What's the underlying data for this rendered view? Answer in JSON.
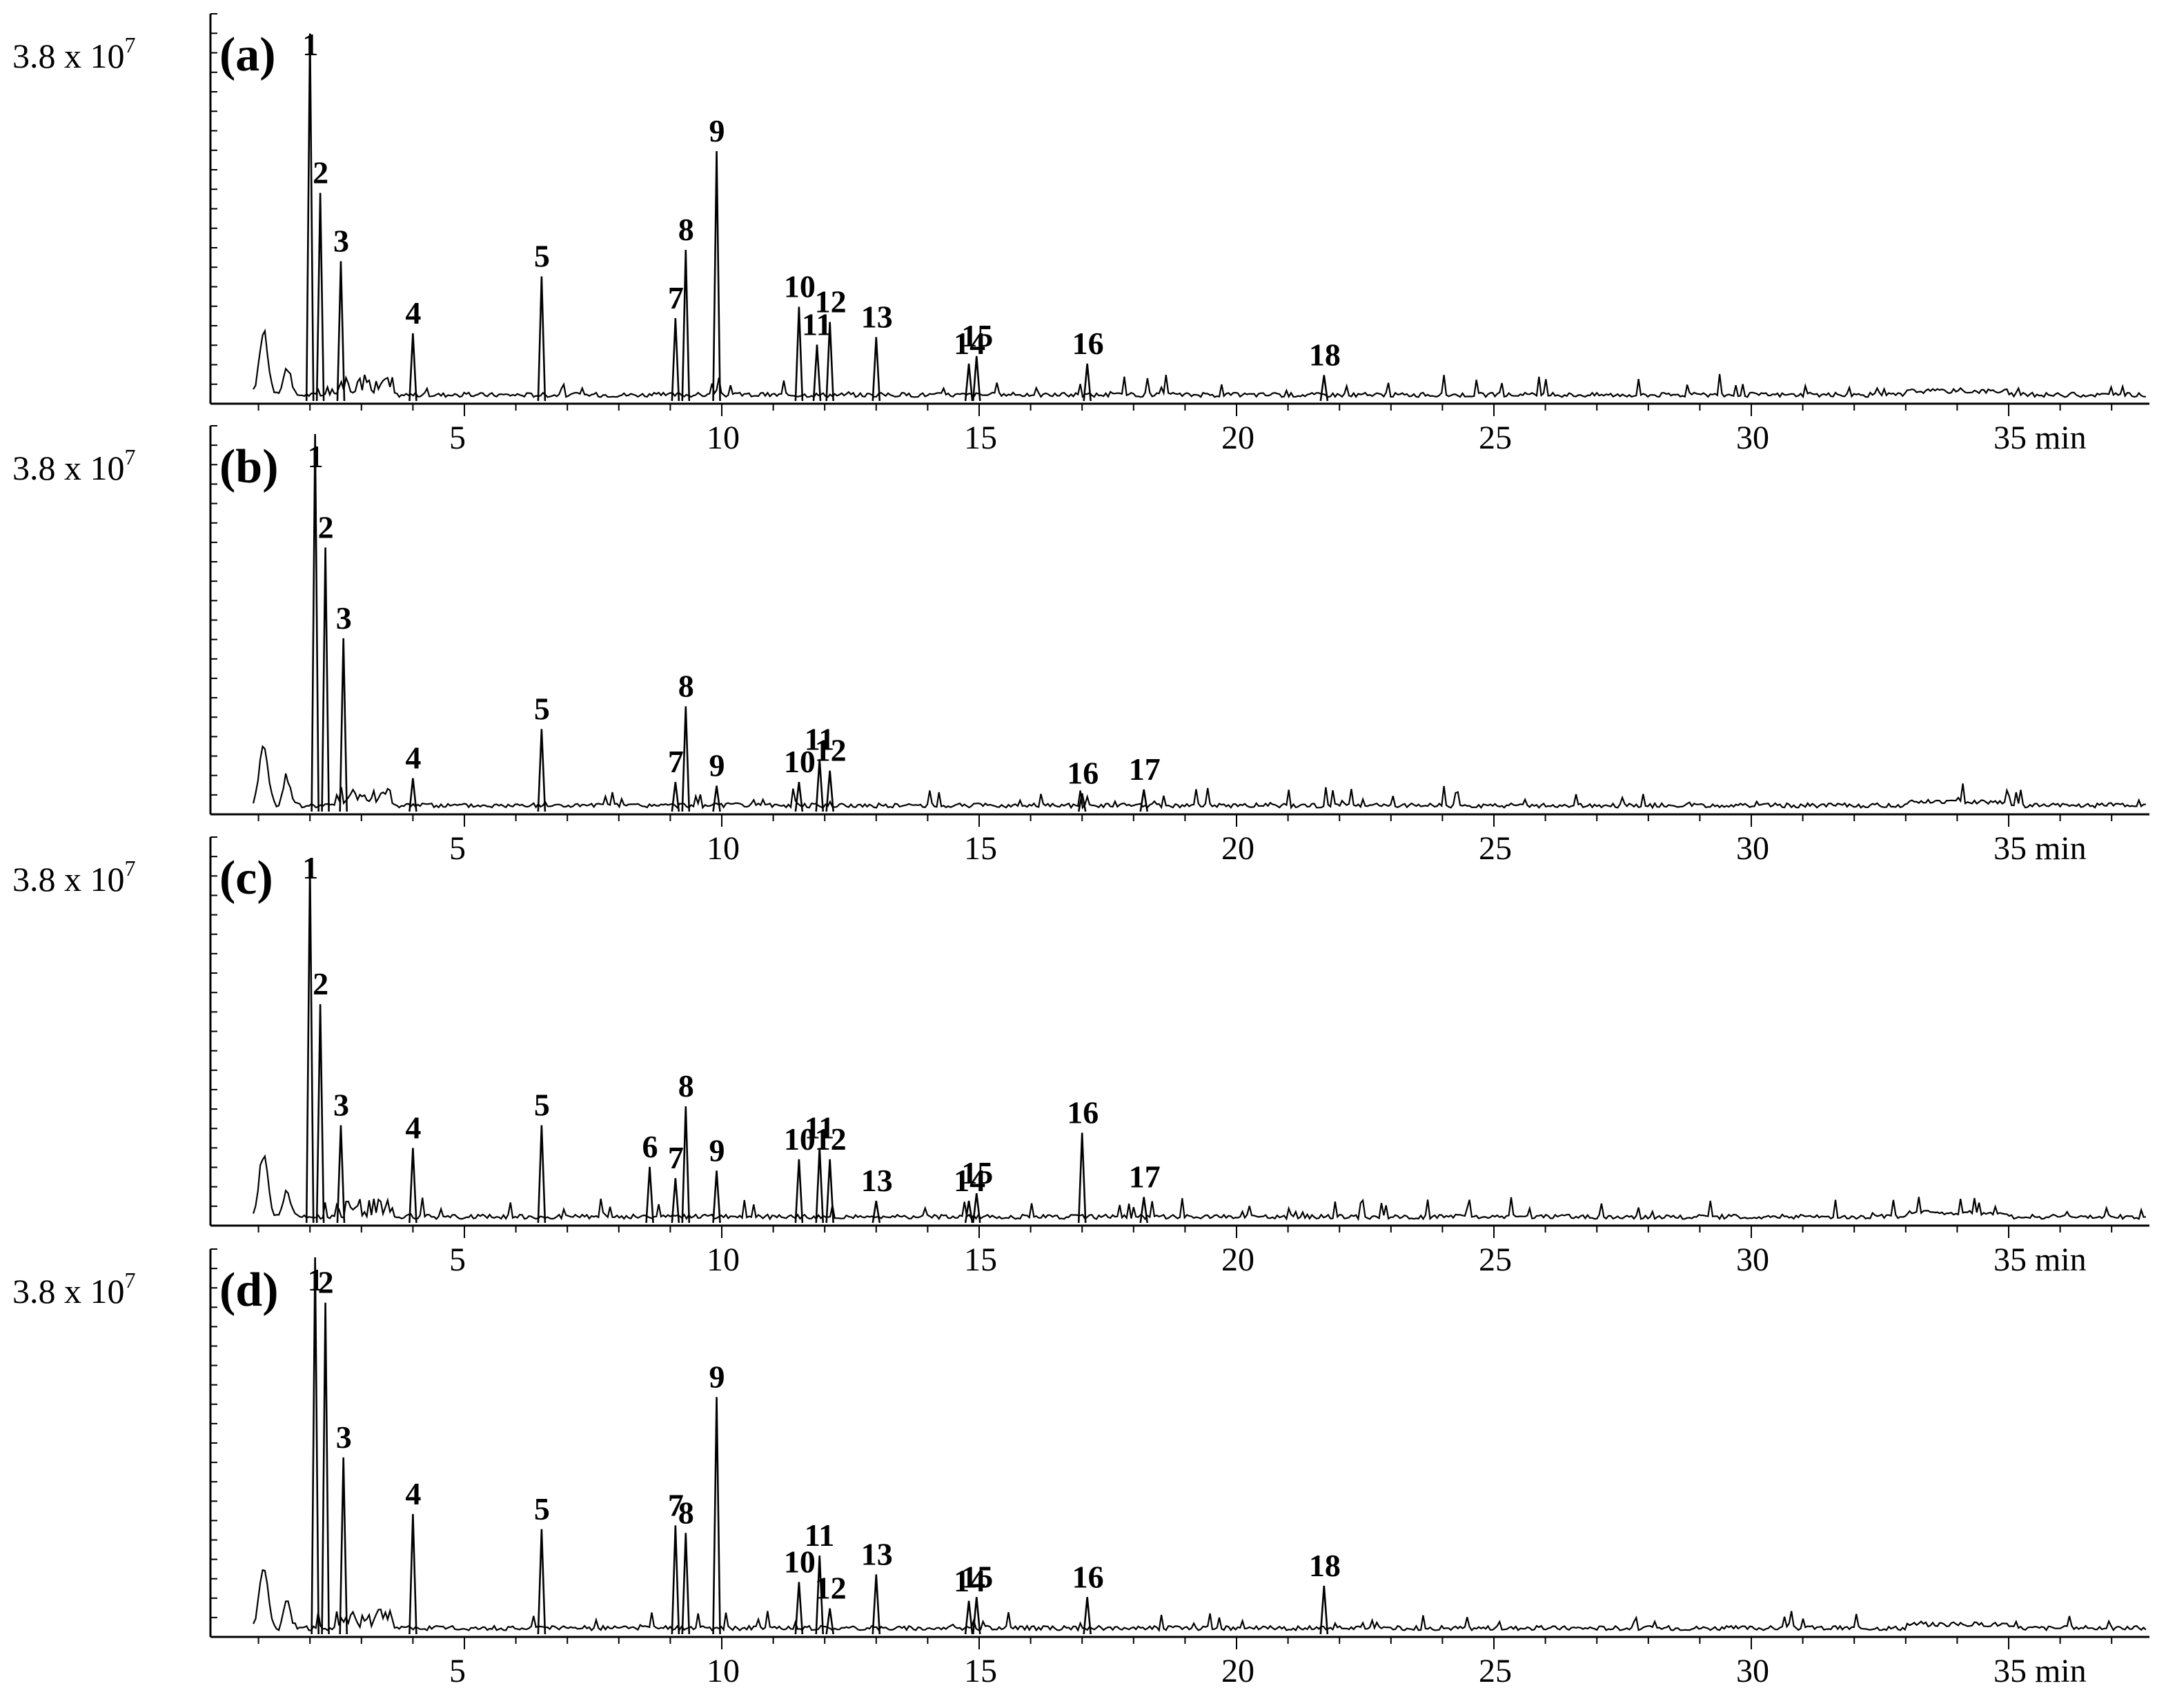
{
  "chart_data": {
    "type": "line",
    "x_unit": "min",
    "xlim": [
      0,
      38
    ],
    "panels": [
      {
        "label": "(a)",
        "y_max_label": "3.8 x 10",
        "y_max_exp": "7",
        "x_ticks": [
          "5",
          "10",
          "15",
          "20",
          "25",
          "30",
          "35 min"
        ],
        "peaks": [
          {
            "id": "1",
            "rt": 2.0,
            "height": 0.97
          },
          {
            "id": "2",
            "rt": 2.2,
            "height": 0.55
          },
          {
            "id": "3",
            "rt": 2.6,
            "height": 0.37
          },
          {
            "id": "4",
            "rt": 4.0,
            "height": 0.18
          },
          {
            "id": "5",
            "rt": 6.5,
            "height": 0.33
          },
          {
            "id": "7",
            "rt": 9.1,
            "height": 0.22
          },
          {
            "id": "8",
            "rt": 9.3,
            "height": 0.4
          },
          {
            "id": "9",
            "rt": 9.9,
            "height": 0.66
          },
          {
            "id": "10",
            "rt": 11.5,
            "height": 0.25
          },
          {
            "id": "11",
            "rt": 11.85,
            "height": 0.15
          },
          {
            "id": "12",
            "rt": 12.1,
            "height": 0.21
          },
          {
            "id": "13",
            "rt": 13.0,
            "height": 0.17
          },
          {
            "id": "14",
            "rt": 14.8,
            "height": 0.1
          },
          {
            "id": "15",
            "rt": 14.95,
            "height": 0.12
          },
          {
            "id": "16",
            "rt": 17.1,
            "height": 0.1
          },
          {
            "id": "18",
            "rt": 21.7,
            "height": 0.07
          }
        ]
      },
      {
        "label": "(b)",
        "y_max_label": "3.8 x 10",
        "y_max_exp": "7",
        "x_ticks": [
          "5",
          "10",
          "15",
          "20",
          "25",
          "30",
          "35 min"
        ],
        "peaks": [
          {
            "id": "1",
            "rt": 2.1,
            "height": 1.0
          },
          {
            "id": "2",
            "rt": 2.3,
            "height": 0.7
          },
          {
            "id": "3",
            "rt": 2.65,
            "height": 0.46
          },
          {
            "id": "4",
            "rt": 4.0,
            "height": 0.09
          },
          {
            "id": "5",
            "rt": 6.5,
            "height": 0.22
          },
          {
            "id": "7",
            "rt": 9.1,
            "height": 0.08
          },
          {
            "id": "8",
            "rt": 9.3,
            "height": 0.28
          },
          {
            "id": "9",
            "rt": 9.9,
            "height": 0.07
          },
          {
            "id": "10",
            "rt": 11.5,
            "height": 0.08
          },
          {
            "id": "11",
            "rt": 11.9,
            "height": 0.14
          },
          {
            "id": "12",
            "rt": 12.1,
            "height": 0.11
          },
          {
            "id": "16",
            "rt": 17.0,
            "height": 0.05
          },
          {
            "id": "17",
            "rt": 18.2,
            "height": 0.06
          }
        ]
      },
      {
        "label": "(c)",
        "y_max_label": "3.8 x 10",
        "y_max_exp": "7",
        "x_ticks": [
          "5",
          "10",
          "15",
          "20",
          "25",
          "30",
          "35 min"
        ],
        "peaks": [
          {
            "id": "1",
            "rt": 2.0,
            "height": 0.95
          },
          {
            "id": "2",
            "rt": 2.2,
            "height": 0.58
          },
          {
            "id": "3",
            "rt": 2.6,
            "height": 0.26
          },
          {
            "id": "4",
            "rt": 4.0,
            "height": 0.2
          },
          {
            "id": "5",
            "rt": 6.5,
            "height": 0.26
          },
          {
            "id": "6",
            "rt": 8.6,
            "height": 0.15
          },
          {
            "id": "7",
            "rt": 9.1,
            "height": 0.12
          },
          {
            "id": "8",
            "rt": 9.3,
            "height": 0.31
          },
          {
            "id": "9",
            "rt": 9.9,
            "height": 0.14
          },
          {
            "id": "10",
            "rt": 11.5,
            "height": 0.17
          },
          {
            "id": "11",
            "rt": 11.9,
            "height": 0.2
          },
          {
            "id": "12",
            "rt": 12.1,
            "height": 0.17
          },
          {
            "id": "13",
            "rt": 13.0,
            "height": 0.06
          },
          {
            "id": "14",
            "rt": 14.8,
            "height": 0.06
          },
          {
            "id": "15",
            "rt": 14.95,
            "height": 0.08
          },
          {
            "id": "16",
            "rt": 17.0,
            "height": 0.24
          },
          {
            "id": "17",
            "rt": 18.2,
            "height": 0.07
          }
        ]
      },
      {
        "label": "(d)",
        "y_max_label": "3.8 x 10",
        "y_max_exp": "7",
        "x_ticks": [
          "5",
          "10",
          "15",
          "20",
          "25",
          "30",
          "35 min"
        ],
        "peaks": [
          {
            "id": "1",
            "rt": 2.1,
            "height": 1.0
          },
          {
            "id": "2",
            "rt": 2.3,
            "height": 0.88
          },
          {
            "id": "3",
            "rt": 2.65,
            "height": 0.47
          },
          {
            "id": "4",
            "rt": 4.0,
            "height": 0.32
          },
          {
            "id": "5",
            "rt": 6.5,
            "height": 0.28
          },
          {
            "id": "7",
            "rt": 9.1,
            "height": 0.29
          },
          {
            "id": "8",
            "rt": 9.3,
            "height": 0.27
          },
          {
            "id": "9",
            "rt": 9.9,
            "height": 0.63
          },
          {
            "id": "10",
            "rt": 11.5,
            "height": 0.14
          },
          {
            "id": "11",
            "rt": 11.9,
            "height": 0.21
          },
          {
            "id": "12",
            "rt": 12.1,
            "height": 0.07
          },
          {
            "id": "13",
            "rt": 13.0,
            "height": 0.16
          },
          {
            "id": "14",
            "rt": 14.8,
            "height": 0.09
          },
          {
            "id": "15",
            "rt": 14.95,
            "height": 0.1
          },
          {
            "id": "16",
            "rt": 17.1,
            "height": 0.1
          },
          {
            "id": "18",
            "rt": 21.7,
            "height": 0.13
          }
        ]
      }
    ]
  }
}
